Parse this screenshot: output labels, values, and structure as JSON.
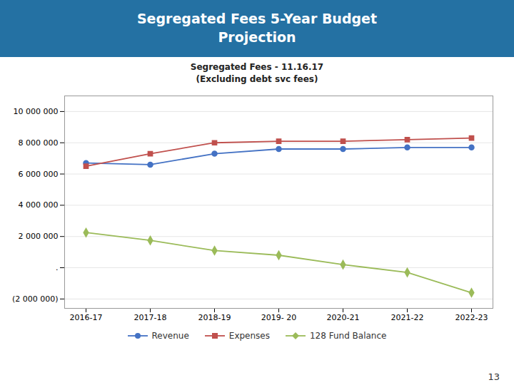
{
  "chart_data": {
    "type": "line",
    "title": "Segregated Fees 5-Year Budget\nProjection",
    "subtitle": "Segregated Fees - 11.16.17\n(Excluding debt svc fees)",
    "annotations": [
      "13"
    ],
    "categories": [
      "2016-17",
      "2017-18",
      "2018-19",
      "2019- 20",
      "2020-21",
      "2021-22",
      "2022-23"
    ],
    "series": [
      {
        "name": "Revenue",
        "color": "#4472C4",
        "marker": "circle",
        "values": [
          6700000,
          6600000,
          7300000,
          7600000,
          7600000,
          7700000,
          7700000
        ]
      },
      {
        "name": "Expenses",
        "color": "#C0504D",
        "marker": "square",
        "values": [
          6500000,
          7300000,
          8000000,
          8100000,
          8100000,
          8200000,
          8300000
        ]
      },
      {
        "name": "128 Fund Balance",
        "color": "#9BBB59",
        "marker": "diamond",
        "values": [
          2250000,
          1750000,
          1100000,
          800000,
          200000,
          -300000,
          -1600000
        ]
      }
    ],
    "ylim": [
      -2600000,
      11000000
    ],
    "yticks": [
      {
        "value": -2000000,
        "label": "(2 000 000)"
      },
      {
        "value": 0,
        "label": "."
      },
      {
        "value": 2000000,
        "label": "2 000 000"
      },
      {
        "value": 4000000,
        "label": "4 000 000"
      },
      {
        "value": 6000000,
        "label": "6 000 000"
      },
      {
        "value": 8000000,
        "label": "8 000 000"
      },
      {
        "value": 10000000,
        "label": "10 000 000"
      }
    ],
    "grid": true,
    "legend": "bottom"
  }
}
